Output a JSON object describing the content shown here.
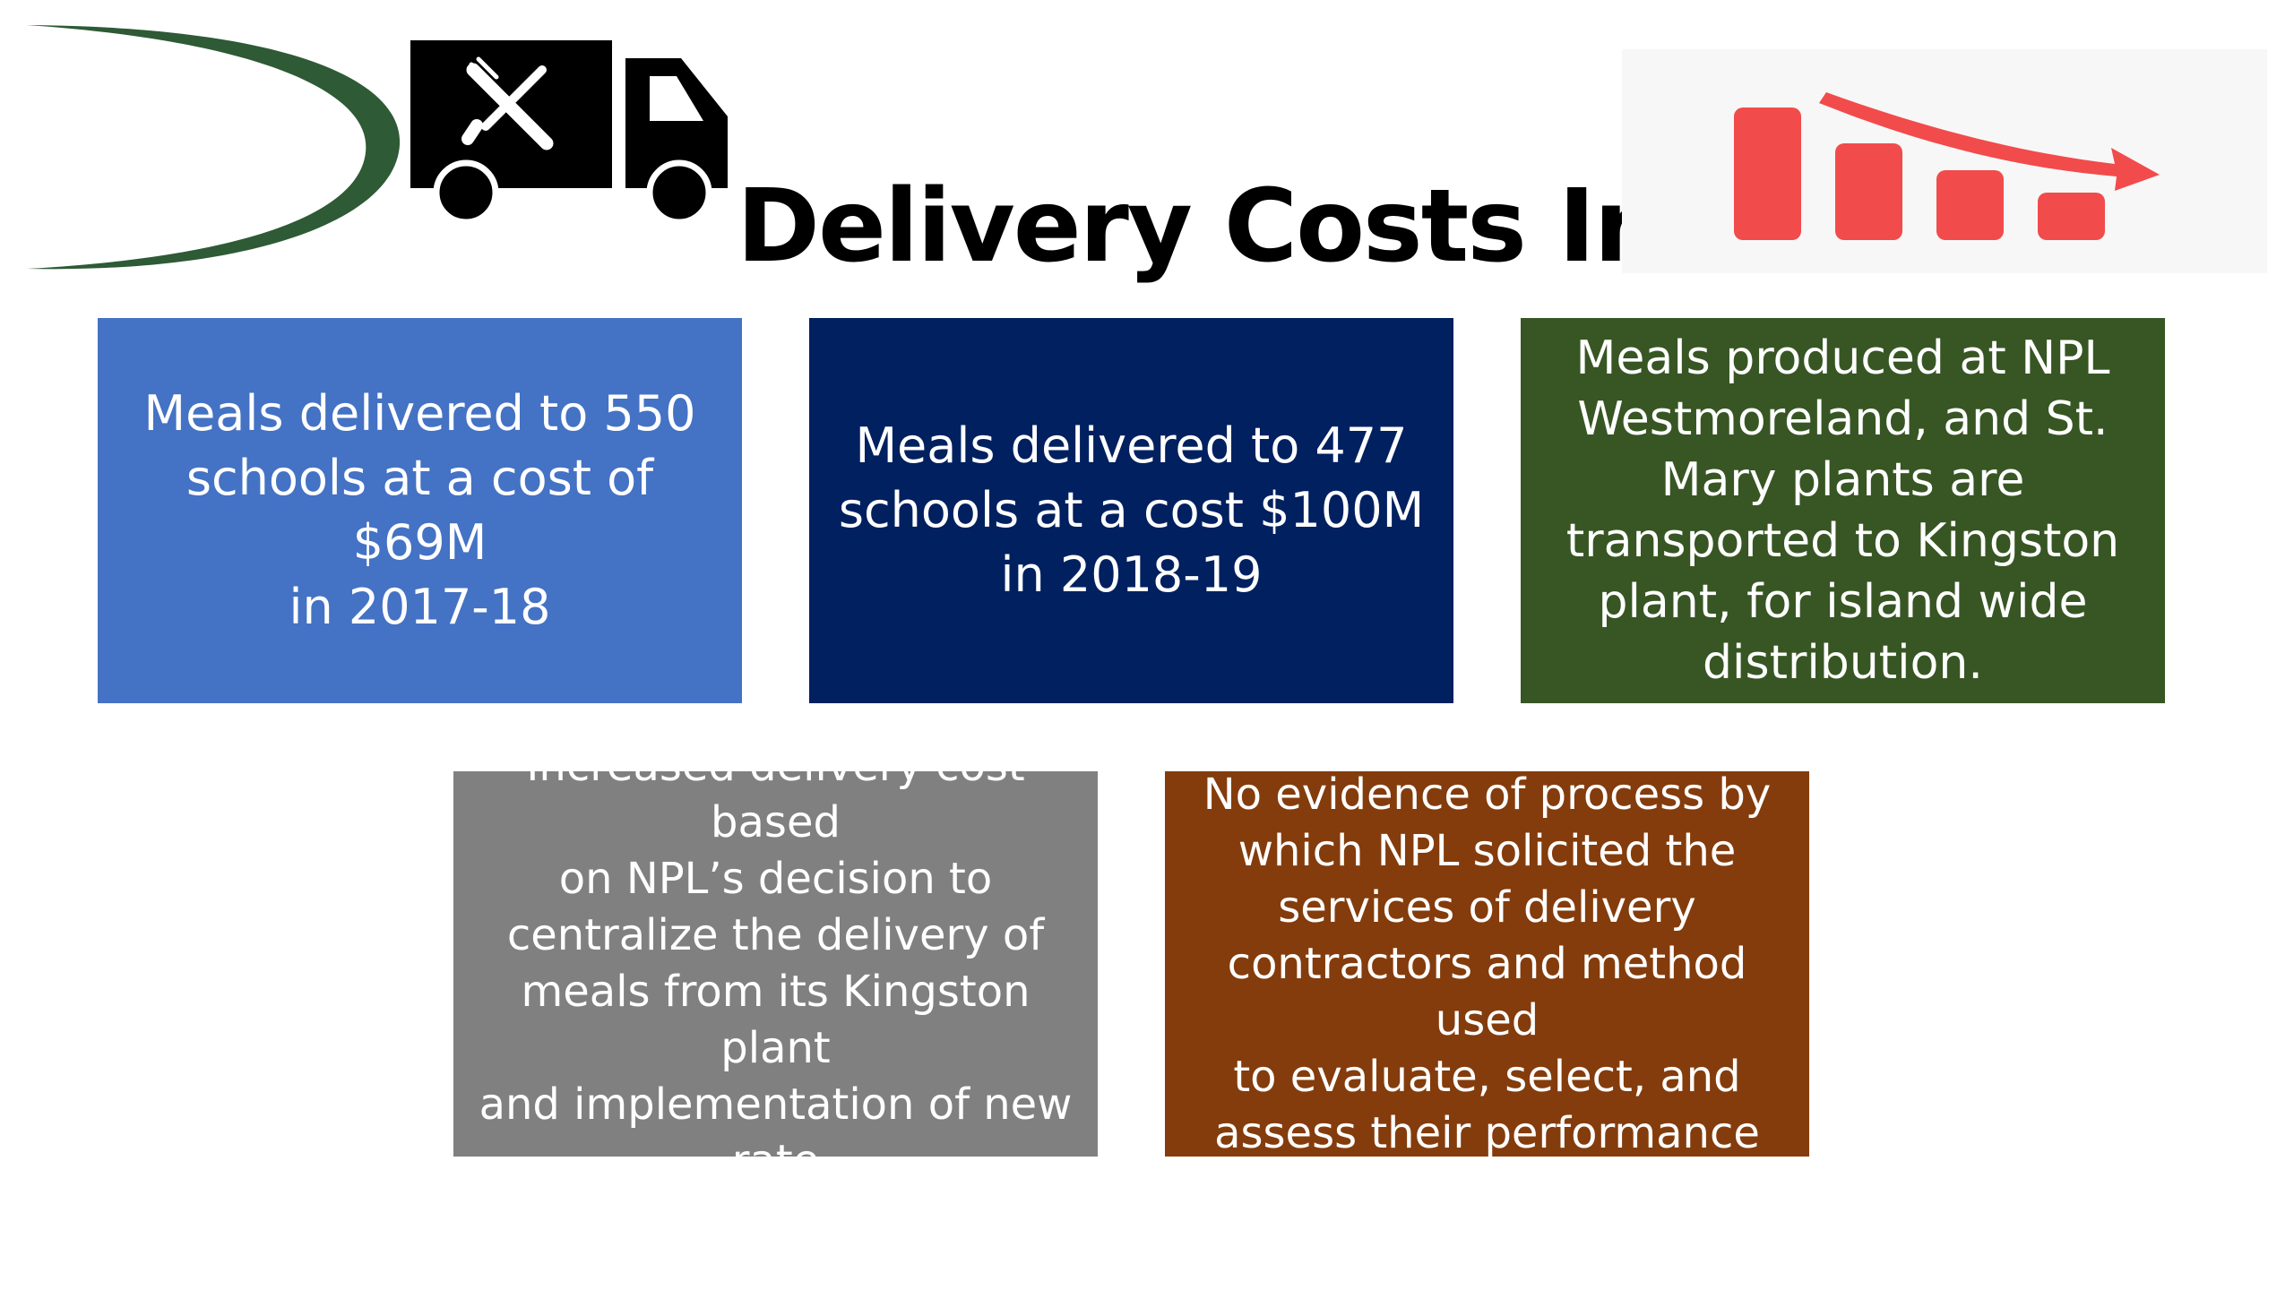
{
  "title": "Delivery Costs Increase",
  "icons": {
    "logo": "green-swoosh-logo",
    "truck": "food-delivery-truck-icon",
    "chart": "declining-bar-chart-icon"
  },
  "colors": {
    "swoosh": "#2e5a35",
    "truck": "#000000",
    "chart_bars": "#f24b4b",
    "box_1": "#4472c4",
    "box_2": "#002060",
    "box_3": "#375623",
    "box_4": "#808080",
    "box_5": "#843c0c"
  },
  "boxes": [
    {
      "lines": [
        "Meals delivered  to 550",
        "schools at a cost of $69M",
        "in 2017-18"
      ]
    },
    {
      "lines": [
        "Meals delivered to 477",
        "schools at a cost $100M",
        "in 2018-19"
      ]
    },
    {
      "lines": [
        "Meals produced at NPL",
        "Westmoreland, and St.",
        "Mary plants are",
        "transported to Kingston",
        "plant, for island wide",
        "distribution."
      ]
    },
    {
      "lines": [
        "Increased delivery cost based",
        "on NPL’s decision to",
        "centralize the delivery of",
        "meals from its Kingston plant",
        "and  implementation of new",
        "rate"
      ]
    },
    {
      "lines": [
        "No evidence of process by",
        "which NPL solicited the",
        "services of delivery",
        "contractors and method used",
        "to evaluate, select, and",
        "assess their performance"
      ]
    }
  ]
}
